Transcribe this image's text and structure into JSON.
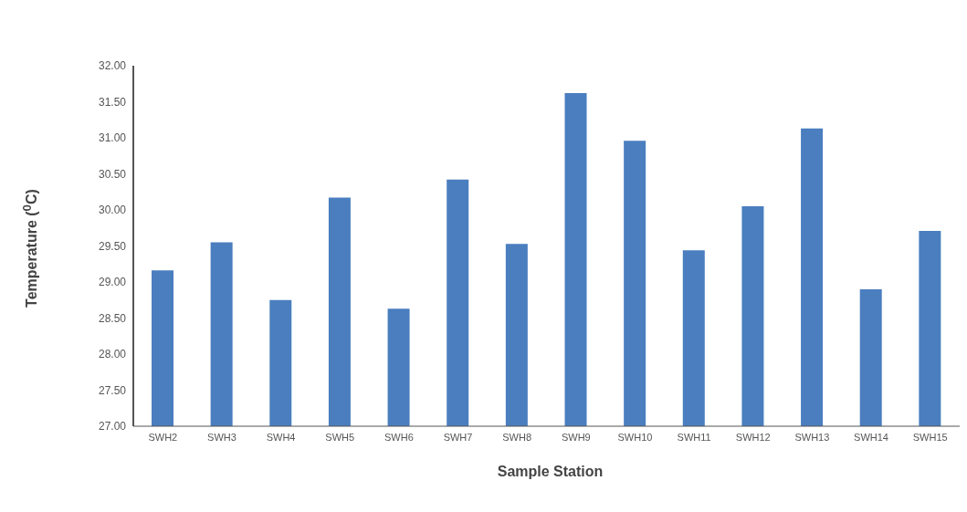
{
  "chart_data": {
    "type": "bar",
    "xlabel": "Sample Station",
    "ylabel": "Temperature ($^{0}$C)",
    "categories": [
      "SWH2",
      "SWH3",
      "SWH4",
      "SWH5",
      "SWH6",
      "SWH7",
      "SWH8",
      "SWH9",
      "SWH10",
      "SWH11",
      "SWH12",
      "SWH13",
      "SWH14",
      "SWH15"
    ],
    "values": [
      29.16,
      29.55,
      28.75,
      30.17,
      28.63,
      30.42,
      29.53,
      31.62,
      30.96,
      29.44,
      30.05,
      31.13,
      28.9,
      29.71
    ],
    "color": "#4a7ebf",
    "ylim": [
      27,
      32
    ],
    "yticks": [
      {
        "value": 27,
        "label": "27.00"
      },
      {
        "value": 27.5,
        "label": "27.50"
      },
      {
        "value": 28,
        "label": "28.00"
      },
      {
        "value": 28.5,
        "label": "28.50"
      },
      {
        "value": 29,
        "label": "29.00"
      },
      {
        "value": 29.5,
        "label": "29.50"
      },
      {
        "value": 30,
        "label": "30.00"
      },
      {
        "value": 30.5,
        "label": "30.50"
      },
      {
        "value": 31,
        "label": "31.00"
      },
      {
        "value": 31.5,
        "label": "31.50"
      },
      {
        "value": 32,
        "label": "32.00"
      }
    ],
    "grid": false
  }
}
